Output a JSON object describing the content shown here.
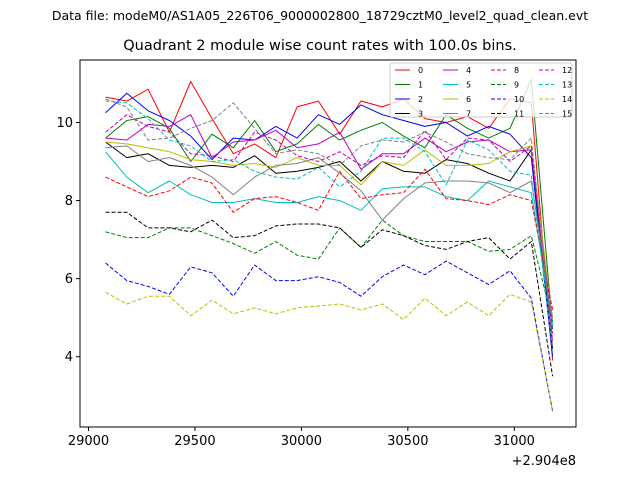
{
  "suptitle": "Data file: modeM0/AS1A05_226T06_9000002800_18729cztM0_level2_quad_clean.evt",
  "chart_data": {
    "type": "line",
    "title": "Quadrant 2 module wise count rates with 100.0s bins.",
    "xlabel": "",
    "ylabel": "",
    "offset_text": "+2.904e8",
    "xlim": [
      28960,
      31290
    ],
    "ylim": [
      2.2,
      11.6
    ],
    "xticks": [
      29000,
      29500,
      30000,
      30500,
      31000
    ],
    "yticks": [
      4,
      6,
      8,
      10
    ],
    "grid": false,
    "legend_position": "top-right",
    "x": [
      29080,
      29180,
      29280,
      29380,
      29480,
      29580,
      29680,
      29780,
      29880,
      29980,
      30080,
      30180,
      30280,
      30380,
      30480,
      30580,
      30680,
      30780,
      30880,
      30980,
      31080,
      31180
    ],
    "series": [
      {
        "name": "0",
        "color": "#ff0000",
        "dash": "solid",
        "values": [
          10.65,
          10.55,
          10.85,
          9.75,
          11.05,
          10.1,
          9.2,
          9.45,
          9.1,
          10.4,
          10.55,
          9.7,
          10.55,
          10.4,
          10.6,
          10.1,
          10.0,
          10.15,
          9.85,
          10.6,
          10.5,
          3.9
        ]
      },
      {
        "name": "1",
        "color": "#008000",
        "dash": "solid",
        "values": [
          9.6,
          10.05,
          10.15,
          9.85,
          9.0,
          9.7,
          9.35,
          10.05,
          9.25,
          9.45,
          9.95,
          9.55,
          9.8,
          10.0,
          9.65,
          9.35,
          10.2,
          9.85,
          9.6,
          9.85,
          11.1,
          4.7
        ]
      },
      {
        "name": "2",
        "color": "#0000ff",
        "dash": "solid",
        "values": [
          10.25,
          10.75,
          10.3,
          10.05,
          9.65,
          9.05,
          9.6,
          9.55,
          9.9,
          9.6,
          10.2,
          9.95,
          10.45,
          10.2,
          10.05,
          9.9,
          10.0,
          9.65,
          9.9,
          9.7,
          9.1,
          4.0
        ]
      },
      {
        "name": "3",
        "color": "#000000",
        "dash": "solid",
        "values": [
          9.5,
          9.1,
          9.2,
          8.9,
          8.85,
          8.9,
          8.85,
          9.15,
          8.7,
          8.75,
          8.85,
          9.0,
          8.5,
          9.0,
          8.75,
          8.7,
          9.05,
          8.95,
          8.7,
          8.5,
          9.3,
          4.2
        ]
      },
      {
        "name": "4",
        "color": "#bf00bf",
        "dash": "solid",
        "values": [
          9.6,
          9.55,
          9.95,
          9.9,
          10.2,
          9.1,
          9.5,
          9.55,
          9.8,
          9.35,
          9.45,
          9.75,
          8.8,
          9.2,
          9.2,
          9.6,
          9.25,
          9.5,
          9.55,
          9.25,
          9.3,
          4.4
        ]
      },
      {
        "name": "5",
        "color": "#00bfbf",
        "dash": "solid",
        "values": [
          9.25,
          8.6,
          8.2,
          8.5,
          8.15,
          7.95,
          7.95,
          8.05,
          7.95,
          7.95,
          8.1,
          8.0,
          7.75,
          8.3,
          8.35,
          8.35,
          8.1,
          8.0,
          8.5,
          8.35,
          8.2,
          4.8
        ]
      },
      {
        "name": "6",
        "color": "#bfbf00",
        "dash": "solid",
        "values": [
          9.5,
          9.45,
          9.35,
          9.25,
          9.05,
          9.0,
          8.9,
          8.95,
          8.85,
          9.1,
          8.9,
          8.9,
          8.4,
          9.0,
          8.9,
          9.3,
          8.9,
          8.9,
          8.95,
          9.25,
          9.4,
          4.9
        ]
      },
      {
        "name": "7",
        "color": "#808080",
        "dash": "solid",
        "values": [
          9.35,
          9.4,
          9.0,
          9.1,
          8.9,
          8.6,
          8.15,
          8.6,
          8.9,
          8.95,
          9.1,
          8.7,
          8.25,
          7.5,
          8.05,
          8.45,
          8.5,
          8.5,
          8.45,
          8.2,
          8.5,
          5.0
        ]
      },
      {
        "name": "8",
        "color": "#ff0000",
        "dash": "dashed",
        "values": [
          8.6,
          8.35,
          8.1,
          8.25,
          8.6,
          8.45,
          7.7,
          8.05,
          8.1,
          7.95,
          7.75,
          8.75,
          8.05,
          8.15,
          8.2,
          8.8,
          8.05,
          8.0,
          7.9,
          8.15,
          8.0,
          5.2
        ]
      },
      {
        "name": "9",
        "color": "#008000",
        "dash": "dashed",
        "values": [
          7.2,
          7.05,
          7.05,
          7.3,
          7.3,
          7.1,
          6.9,
          6.65,
          6.95,
          6.6,
          6.5,
          7.3,
          6.8,
          7.5,
          7.1,
          6.95,
          6.95,
          6.95,
          6.7,
          6.75,
          7.1,
          4.9
        ]
      },
      {
        "name": "10",
        "color": "#0000ff",
        "dash": "dashed",
        "values": [
          6.4,
          5.95,
          5.8,
          5.6,
          6.3,
          6.15,
          5.55,
          6.35,
          5.95,
          5.95,
          6.05,
          5.9,
          5.55,
          6.05,
          6.35,
          6.1,
          6.45,
          6.15,
          5.85,
          6.2,
          5.5,
          2.6
        ]
      },
      {
        "name": "11",
        "color": "#000000",
        "dash": "dashed",
        "values": [
          7.7,
          7.7,
          7.3,
          7.3,
          7.2,
          7.5,
          7.05,
          7.1,
          7.35,
          7.4,
          7.4,
          7.3,
          6.8,
          7.25,
          7.1,
          6.85,
          6.75,
          6.95,
          7.05,
          6.5,
          6.95,
          3.5
        ]
      },
      {
        "name": "12",
        "color": "#bf00bf",
        "dash": "dashed",
        "values": [
          9.75,
          10.2,
          9.9,
          9.75,
          9.2,
          9.15,
          9.0,
          9.75,
          9.55,
          9.15,
          9.0,
          9.25,
          8.9,
          9.15,
          9.1,
          9.8,
          9.05,
          9.6,
          9.55,
          9.0,
          9.4,
          4.6
        ]
      },
      {
        "name": "13",
        "color": "#00bfbf",
        "dash": "dashed",
        "values": [
          10.55,
          10.5,
          10.1,
          9.55,
          9.4,
          9.0,
          9.05,
          8.75,
          8.6,
          8.55,
          8.85,
          8.35,
          8.75,
          9.6,
          9.6,
          9.25,
          8.4,
          9.55,
          9.3,
          8.75,
          8.65,
          4.2
        ]
      },
      {
        "name": "14",
        "color": "#bfbf00",
        "dash": "dashed",
        "values": [
          5.65,
          5.35,
          5.55,
          5.55,
          5.05,
          5.45,
          5.1,
          5.25,
          5.1,
          5.25,
          5.3,
          5.35,
          5.2,
          5.35,
          4.95,
          5.5,
          5.05,
          5.4,
          5.05,
          5.6,
          5.4,
          2.6
        ]
      },
      {
        "name": "15",
        "color": "#808080",
        "dash": "dashed",
        "values": [
          10.6,
          10.4,
          9.55,
          9.6,
          9.85,
          10.05,
          10.5,
          9.85,
          9.2,
          9.3,
          9.2,
          8.9,
          9.4,
          9.55,
          9.5,
          9.75,
          9.5,
          9.2,
          9.1,
          9.05,
          9.6,
          4.3
        ]
      }
    ]
  }
}
